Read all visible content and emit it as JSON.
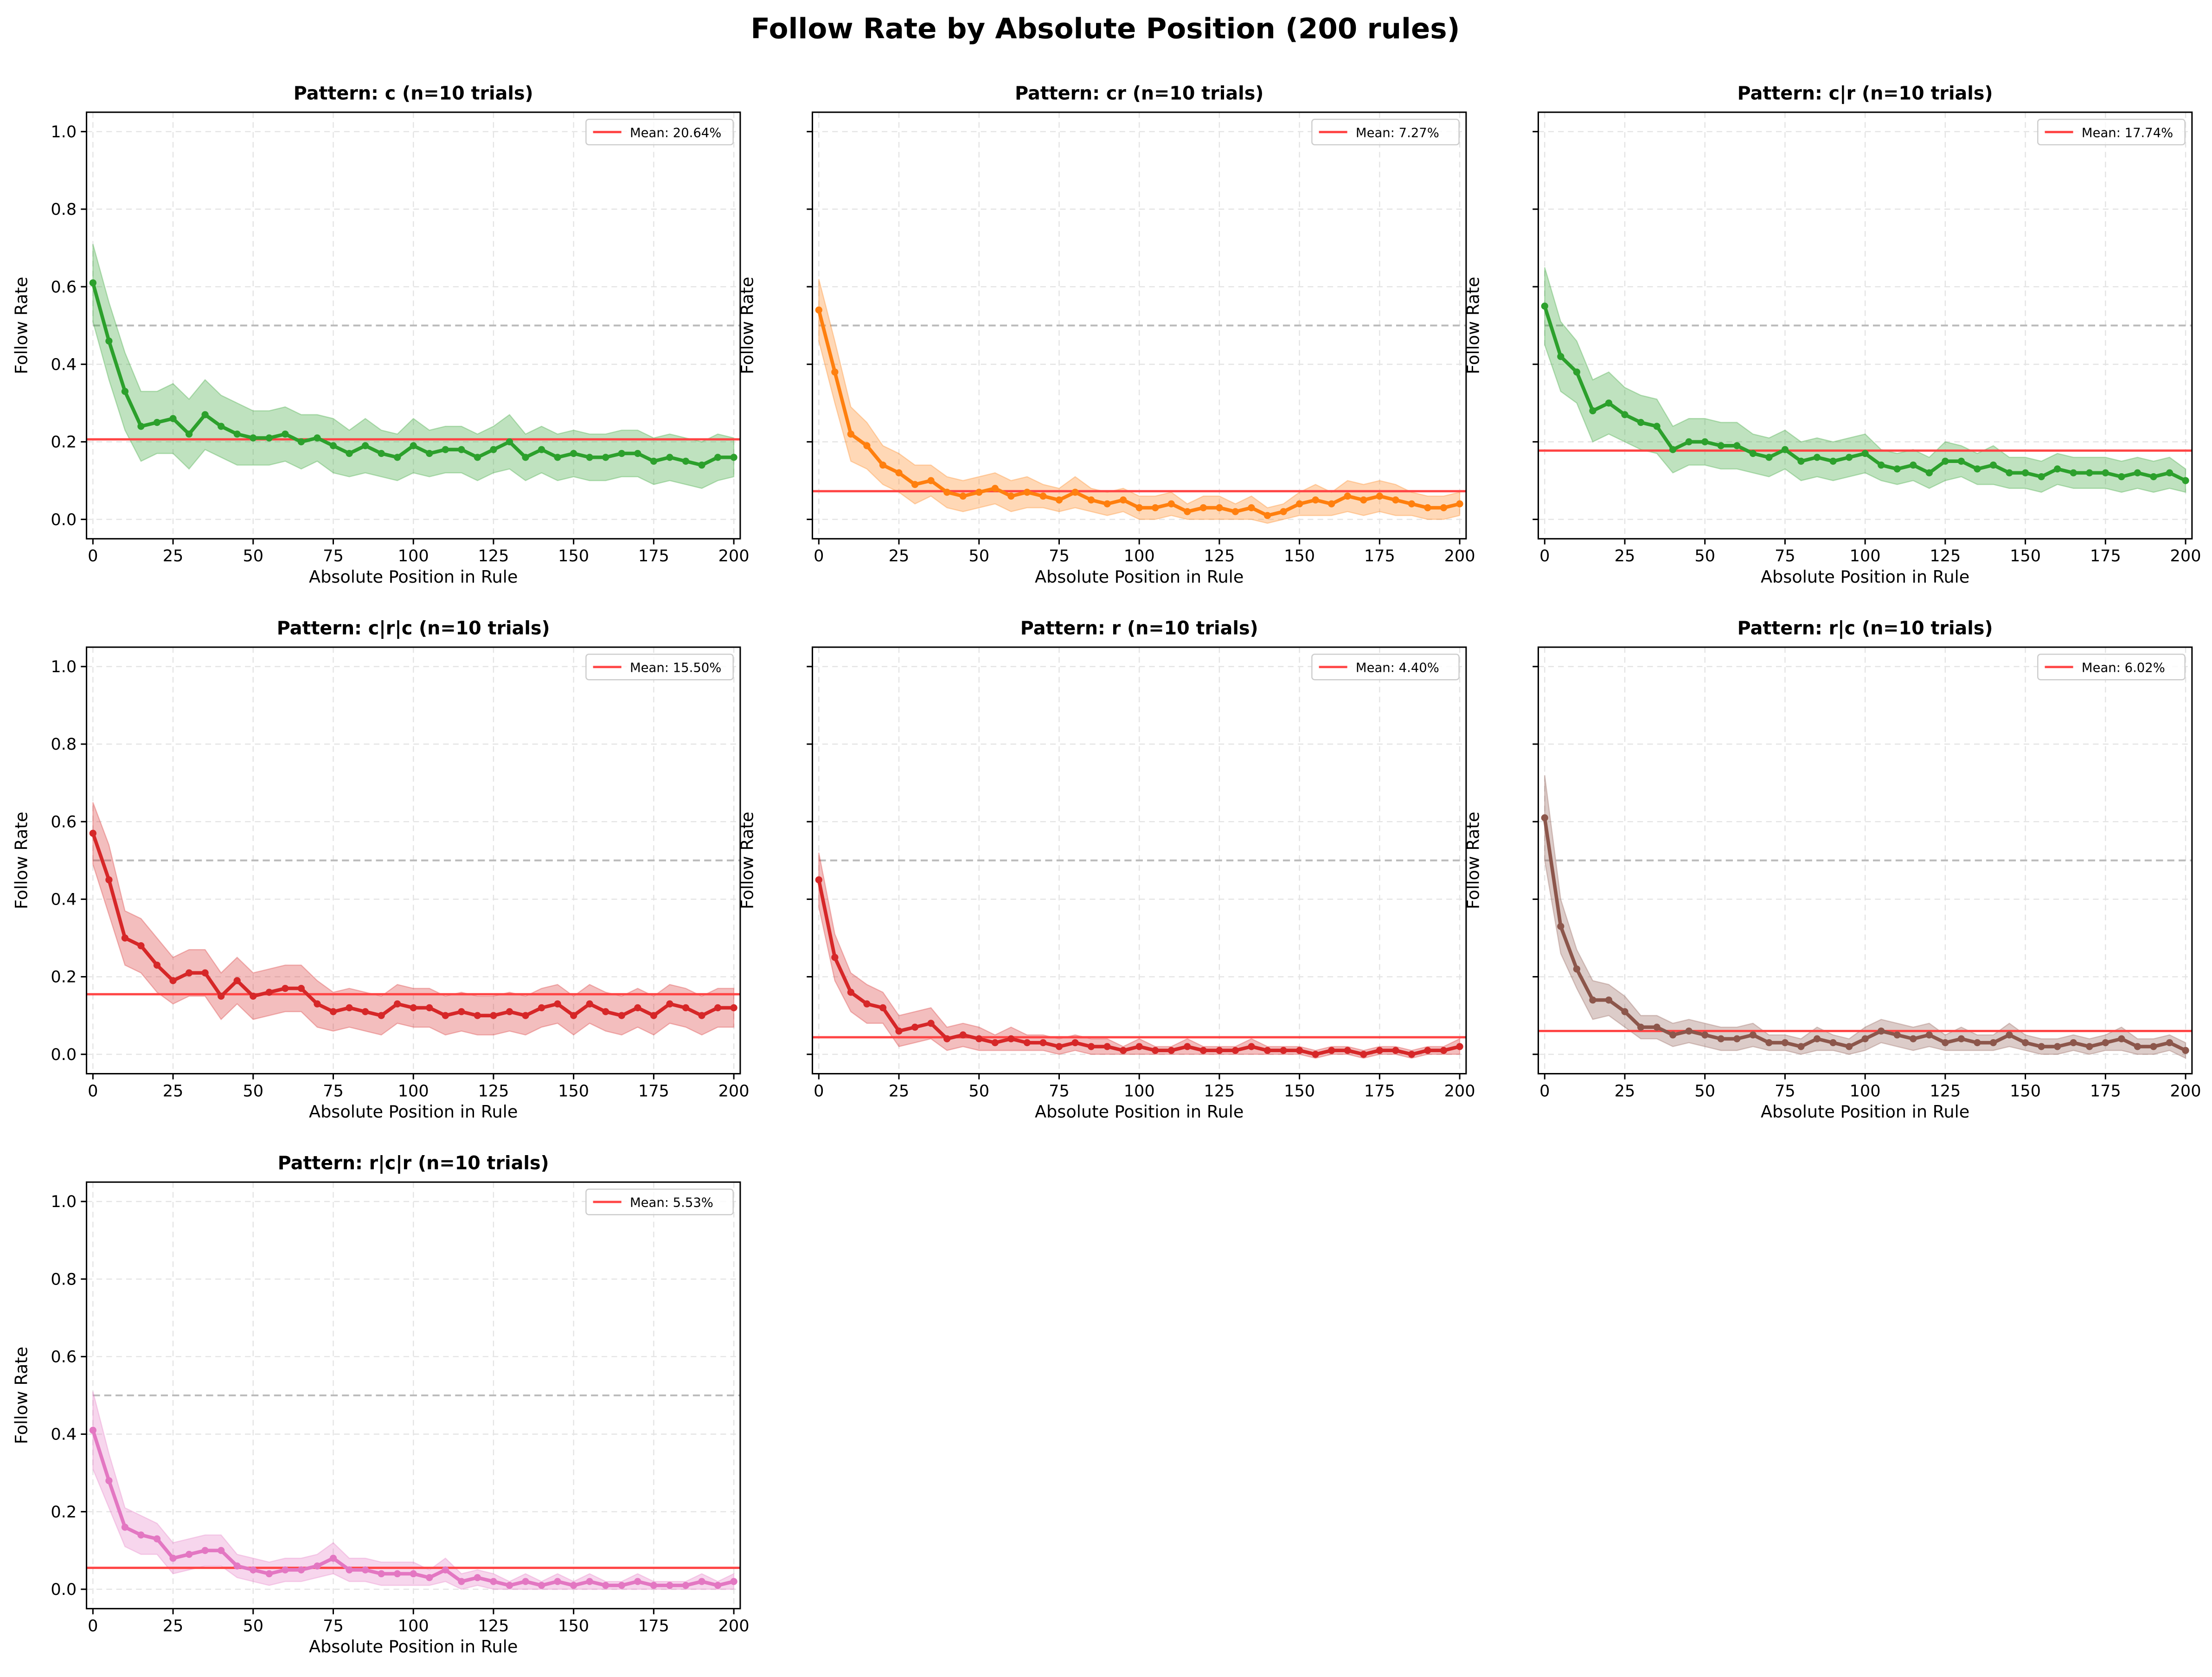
{
  "chart_data": {
    "type": "line",
    "title": "Follow Rate by Absolute Position (200 rules)",
    "xlabel": "Absolute Position in Rule",
    "ylabel": "Follow Rate",
    "xlim": [
      -2,
      202
    ],
    "ylim": [
      -0.05,
      1.05
    ],
    "xticks": [
      "0",
      "25",
      "50",
      "75",
      "100",
      "125",
      "150",
      "175",
      "200"
    ],
    "xtick_values": [
      0,
      25,
      50,
      75,
      100,
      125,
      150,
      175,
      200
    ],
    "yticks": [
      "0.0",
      "0.2",
      "0.4",
      "0.6",
      "0.8",
      "1.0"
    ],
    "ytick_values": [
      0,
      0.2,
      0.4,
      0.6,
      0.8,
      1.0
    ],
    "reference_line": 0.5,
    "grid": true,
    "legend_placement": "top-right",
    "mean_color": "#ff4444",
    "x": [
      0,
      5,
      10,
      15,
      20,
      25,
      30,
      35,
      40,
      45,
      50,
      55,
      60,
      65,
      70,
      75,
      80,
      85,
      90,
      95,
      100,
      105,
      110,
      115,
      120,
      125,
      130,
      135,
      140,
      145,
      150,
      155,
      160,
      165,
      170,
      175,
      180,
      185,
      190,
      195,
      200
    ],
    "panels": [
      {
        "title": "Pattern: c (n=10 trials)",
        "legend": "Mean: 20.64%",
        "mean": 0.2064,
        "color": "#2ca02c",
        "values": [
          0.61,
          0.46,
          0.33,
          0.24,
          0.25,
          0.26,
          0.22,
          0.27,
          0.24,
          0.22,
          0.21,
          0.21,
          0.22,
          0.2,
          0.21,
          0.19,
          0.17,
          0.19,
          0.17,
          0.16,
          0.19,
          0.17,
          0.18,
          0.18,
          0.16,
          0.18,
          0.2,
          0.16,
          0.18,
          0.16,
          0.17,
          0.16,
          0.16,
          0.17,
          0.17,
          0.15,
          0.16,
          0.15,
          0.14,
          0.16,
          0.16
        ],
        "ci": [
          0.1,
          0.1,
          0.1,
          0.09,
          0.08,
          0.09,
          0.09,
          0.09,
          0.08,
          0.08,
          0.07,
          0.07,
          0.07,
          0.07,
          0.06,
          0.07,
          0.06,
          0.07,
          0.06,
          0.06,
          0.07,
          0.06,
          0.06,
          0.06,
          0.06,
          0.06,
          0.07,
          0.06,
          0.06,
          0.06,
          0.06,
          0.06,
          0.06,
          0.06,
          0.06,
          0.06,
          0.06,
          0.06,
          0.06,
          0.06,
          0.05
        ]
      },
      {
        "title": "Pattern: cr (n=10 trials)",
        "legend": "Mean: 7.27%",
        "mean": 0.0727,
        "color": "#ff7f0e",
        "values": [
          0.54,
          0.38,
          0.22,
          0.19,
          0.14,
          0.12,
          0.09,
          0.1,
          0.07,
          0.06,
          0.07,
          0.08,
          0.06,
          0.07,
          0.06,
          0.05,
          0.07,
          0.05,
          0.04,
          0.05,
          0.03,
          0.03,
          0.04,
          0.02,
          0.03,
          0.03,
          0.02,
          0.03,
          0.01,
          0.02,
          0.04,
          0.05,
          0.04,
          0.06,
          0.05,
          0.06,
          0.05,
          0.04,
          0.03,
          0.03,
          0.04
        ],
        "ci": [
          0.08,
          0.08,
          0.07,
          0.06,
          0.05,
          0.05,
          0.05,
          0.04,
          0.04,
          0.04,
          0.04,
          0.04,
          0.04,
          0.04,
          0.03,
          0.03,
          0.04,
          0.03,
          0.03,
          0.03,
          0.03,
          0.03,
          0.03,
          0.02,
          0.03,
          0.03,
          0.02,
          0.03,
          0.02,
          0.02,
          0.03,
          0.04,
          0.03,
          0.04,
          0.04,
          0.04,
          0.04,
          0.03,
          0.03,
          0.03,
          0.03
        ]
      },
      {
        "title": "Pattern: c|r (n=10 trials)",
        "legend": "Mean: 17.74%",
        "mean": 0.1774,
        "color": "#2ca02c",
        "values": [
          0.55,
          0.42,
          0.38,
          0.28,
          0.3,
          0.27,
          0.25,
          0.24,
          0.18,
          0.2,
          0.2,
          0.19,
          0.19,
          0.17,
          0.16,
          0.18,
          0.15,
          0.16,
          0.15,
          0.16,
          0.17,
          0.14,
          0.13,
          0.14,
          0.12,
          0.15,
          0.15,
          0.13,
          0.14,
          0.12,
          0.12,
          0.11,
          0.13,
          0.12,
          0.12,
          0.12,
          0.11,
          0.12,
          0.11,
          0.12,
          0.1
        ],
        "ci": [
          0.1,
          0.09,
          0.08,
          0.08,
          0.08,
          0.07,
          0.07,
          0.07,
          0.06,
          0.06,
          0.06,
          0.06,
          0.06,
          0.05,
          0.05,
          0.05,
          0.05,
          0.05,
          0.05,
          0.05,
          0.05,
          0.04,
          0.04,
          0.04,
          0.04,
          0.05,
          0.04,
          0.04,
          0.05,
          0.04,
          0.04,
          0.04,
          0.04,
          0.04,
          0.04,
          0.04,
          0.04,
          0.04,
          0.04,
          0.04,
          0.03
        ]
      },
      {
        "title": "Pattern: c|r|c (n=10 trials)",
        "legend": "Mean: 15.50%",
        "mean": 0.155,
        "color": "#d62728",
        "values": [
          0.57,
          0.45,
          0.3,
          0.28,
          0.23,
          0.19,
          0.21,
          0.21,
          0.15,
          0.19,
          0.15,
          0.16,
          0.17,
          0.17,
          0.13,
          0.11,
          0.12,
          0.11,
          0.1,
          0.13,
          0.12,
          0.12,
          0.1,
          0.11,
          0.1,
          0.1,
          0.11,
          0.1,
          0.12,
          0.13,
          0.1,
          0.13,
          0.11,
          0.1,
          0.12,
          0.1,
          0.13,
          0.12,
          0.1,
          0.12,
          0.12
        ],
        "ci": [
          0.08,
          0.09,
          0.07,
          0.07,
          0.07,
          0.06,
          0.06,
          0.06,
          0.06,
          0.06,
          0.06,
          0.06,
          0.06,
          0.06,
          0.06,
          0.05,
          0.05,
          0.05,
          0.05,
          0.05,
          0.05,
          0.05,
          0.05,
          0.05,
          0.05,
          0.05,
          0.05,
          0.05,
          0.05,
          0.05,
          0.05,
          0.05,
          0.05,
          0.05,
          0.05,
          0.05,
          0.05,
          0.05,
          0.05,
          0.05,
          0.05
        ]
      },
      {
        "title": "Pattern: r (n=10 trials)",
        "legend": "Mean: 4.40%",
        "mean": 0.044,
        "color": "#d62728",
        "values": [
          0.45,
          0.25,
          0.16,
          0.13,
          0.12,
          0.06,
          0.07,
          0.08,
          0.04,
          0.05,
          0.04,
          0.03,
          0.04,
          0.03,
          0.03,
          0.02,
          0.03,
          0.02,
          0.02,
          0.01,
          0.02,
          0.01,
          0.01,
          0.02,
          0.01,
          0.01,
          0.01,
          0.02,
          0.01,
          0.01,
          0.01,
          0.0,
          0.01,
          0.01,
          0.0,
          0.01,
          0.01,
          0.0,
          0.01,
          0.01,
          0.02
        ],
        "ci": [
          0.07,
          0.06,
          0.05,
          0.05,
          0.04,
          0.04,
          0.04,
          0.04,
          0.03,
          0.03,
          0.03,
          0.02,
          0.03,
          0.02,
          0.02,
          0.02,
          0.02,
          0.02,
          0.02,
          0.01,
          0.02,
          0.01,
          0.01,
          0.02,
          0.01,
          0.01,
          0.01,
          0.02,
          0.01,
          0.01,
          0.01,
          0.01,
          0.01,
          0.01,
          0.01,
          0.01,
          0.01,
          0.01,
          0.01,
          0.01,
          0.02
        ]
      },
      {
        "title": "Pattern: r|c (n=10 trials)",
        "legend": "Mean: 6.02%",
        "mean": 0.0602,
        "color": "#8c564b",
        "values": [
          0.61,
          0.33,
          0.22,
          0.14,
          0.14,
          0.11,
          0.07,
          0.07,
          0.05,
          0.06,
          0.05,
          0.04,
          0.04,
          0.05,
          0.03,
          0.03,
          0.02,
          0.04,
          0.03,
          0.02,
          0.04,
          0.06,
          0.05,
          0.04,
          0.05,
          0.03,
          0.04,
          0.03,
          0.03,
          0.05,
          0.03,
          0.02,
          0.02,
          0.03,
          0.02,
          0.03,
          0.04,
          0.02,
          0.02,
          0.03,
          0.01
        ],
        "ci": [
          0.11,
          0.07,
          0.05,
          0.05,
          0.04,
          0.04,
          0.03,
          0.03,
          0.03,
          0.03,
          0.03,
          0.03,
          0.03,
          0.03,
          0.02,
          0.02,
          0.02,
          0.03,
          0.02,
          0.02,
          0.03,
          0.03,
          0.03,
          0.03,
          0.03,
          0.02,
          0.03,
          0.02,
          0.02,
          0.03,
          0.02,
          0.02,
          0.02,
          0.02,
          0.02,
          0.02,
          0.03,
          0.02,
          0.02,
          0.02,
          0.02
        ]
      },
      {
        "title": "Pattern: r|c|r (n=10 trials)",
        "legend": "Mean: 5.53%",
        "mean": 0.0553,
        "color": "#e377c2",
        "values": [
          0.41,
          0.28,
          0.16,
          0.14,
          0.13,
          0.08,
          0.09,
          0.1,
          0.1,
          0.06,
          0.05,
          0.04,
          0.05,
          0.05,
          0.06,
          0.08,
          0.05,
          0.05,
          0.04,
          0.04,
          0.04,
          0.03,
          0.05,
          0.02,
          0.03,
          0.02,
          0.01,
          0.02,
          0.01,
          0.02,
          0.01,
          0.02,
          0.01,
          0.01,
          0.02,
          0.01,
          0.01,
          0.01,
          0.02,
          0.01,
          0.02
        ],
        "ci": [
          0.1,
          0.07,
          0.05,
          0.05,
          0.04,
          0.04,
          0.04,
          0.04,
          0.04,
          0.03,
          0.03,
          0.03,
          0.03,
          0.03,
          0.03,
          0.04,
          0.03,
          0.03,
          0.03,
          0.03,
          0.03,
          0.02,
          0.03,
          0.02,
          0.02,
          0.02,
          0.01,
          0.02,
          0.01,
          0.02,
          0.01,
          0.02,
          0.01,
          0.01,
          0.02,
          0.01,
          0.01,
          0.01,
          0.02,
          0.01,
          0.02
        ]
      }
    ]
  }
}
